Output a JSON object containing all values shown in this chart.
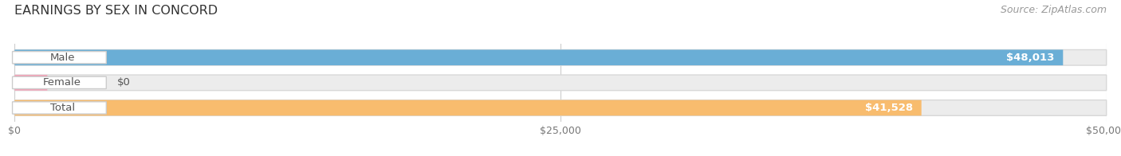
{
  "title": "EARNINGS BY SEX IN CONCORD",
  "source": "Source: ZipAtlas.com",
  "categories": [
    "Male",
    "Female",
    "Total"
  ],
  "values": [
    48013,
    0,
    41528
  ],
  "bar_colors": [
    "#6aaed6",
    "#f4a0b5",
    "#f8bc6e"
  ],
  "bar_bg_color": "#ececec",
  "bar_border_color": "#d8d8d8",
  "background_color": "#ffffff",
  "xlim": [
    0,
    50000
  ],
  "xticks": [
    0,
    25000,
    50000
  ],
  "xtick_labels": [
    "$0",
    "$25,000",
    "$50,000"
  ],
  "value_labels": [
    "$48,013",
    "$0",
    "$41,528"
  ],
  "title_fontsize": 11.5,
  "label_fontsize": 9.5,
  "tick_fontsize": 9,
  "source_fontsize": 9,
  "bar_height": 0.62,
  "label_bg_color": "#ffffff",
  "label_text_color": "#555555",
  "grid_color": "#cccccc"
}
